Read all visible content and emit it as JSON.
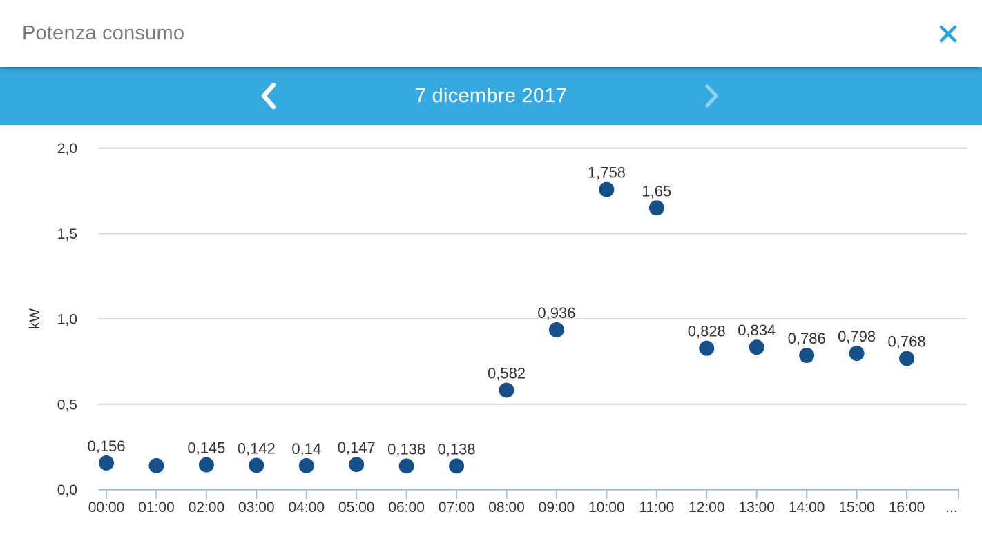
{
  "header": {
    "title": "Potenza consumo",
    "close_icon": "x-close"
  },
  "date_nav": {
    "prev_icon": "chevron-left",
    "date_label": "7 dicembre 2017",
    "next_icon": "chevron-right",
    "next_disabled": true
  },
  "colors": {
    "topbar_blue": "#36A9E0",
    "close_icon_blue": "#29A2E0",
    "point_navy": "#174F8A",
    "axis_blue": "#A8C1D8",
    "gridline_gray": "#D5D5D5",
    "title_gray": "#7A7A7A",
    "chart_text": "#333333",
    "nav_icon_white": "#FFFFFF",
    "nav_icon_disabled": "rgba(255,255,255,0.45)"
  },
  "chart_data": {
    "type": "scatter",
    "title": "Potenza consumo - 7 dicembre 2017",
    "ylabel": "kW",
    "xlabel": "",
    "ylim": [
      0,
      2.0
    ],
    "grid": true,
    "legend": false,
    "y_ticks": [
      {
        "value": 0.0,
        "label": "0,0"
      },
      {
        "value": 0.5,
        "label": "0,5"
      },
      {
        "value": 1.0,
        "label": "1,0"
      },
      {
        "value": 1.5,
        "label": "1,5"
      },
      {
        "value": 2.0,
        "label": "2,0"
      }
    ],
    "x_overflow_label": "...",
    "points": [
      {
        "x": "00:00",
        "value": 0.156,
        "label": "0,156"
      },
      {
        "x": "01:00",
        "value": 0.14,
        "label": ""
      },
      {
        "x": "02:00",
        "value": 0.145,
        "label": "0,145"
      },
      {
        "x": "03:00",
        "value": 0.142,
        "label": "0,142"
      },
      {
        "x": "04:00",
        "value": 0.14,
        "label": "0,14"
      },
      {
        "x": "05:00",
        "value": 0.147,
        "label": "0,147"
      },
      {
        "x": "06:00",
        "value": 0.138,
        "label": "0,138"
      },
      {
        "x": "07:00",
        "value": 0.138,
        "label": "0,138"
      },
      {
        "x": "08:00",
        "value": 0.582,
        "label": "0,582"
      },
      {
        "x": "09:00",
        "value": 0.936,
        "label": "0,936"
      },
      {
        "x": "10:00",
        "value": 1.758,
        "label": "1,758"
      },
      {
        "x": "11:00",
        "value": 1.65,
        "label": "1,65"
      },
      {
        "x": "12:00",
        "value": 0.828,
        "label": "0,828"
      },
      {
        "x": "13:00",
        "value": 0.834,
        "label": "0,834"
      },
      {
        "x": "14:00",
        "value": 0.786,
        "label": "0,786"
      },
      {
        "x": "15:00",
        "value": 0.798,
        "label": "0,798"
      },
      {
        "x": "16:00",
        "value": 0.768,
        "label": "0,768"
      }
    ]
  }
}
